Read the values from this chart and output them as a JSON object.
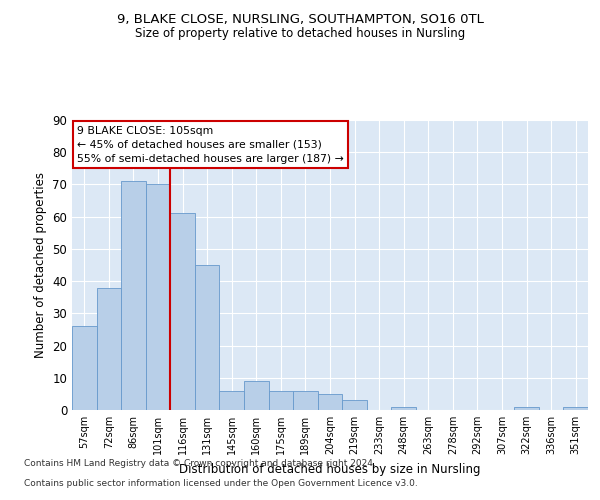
{
  "title1": "9, BLAKE CLOSE, NURSLING, SOUTHAMPTON, SO16 0TL",
  "title2": "Size of property relative to detached houses in Nursling",
  "xlabel": "Distribution of detached houses by size in Nursling",
  "ylabel": "Number of detached properties",
  "categories": [
    "57sqm",
    "72sqm",
    "86sqm",
    "101sqm",
    "116sqm",
    "131sqm",
    "145sqm",
    "160sqm",
    "175sqm",
    "189sqm",
    "204sqm",
    "219sqm",
    "233sqm",
    "248sqm",
    "263sqm",
    "278sqm",
    "292sqm",
    "307sqm",
    "322sqm",
    "336sqm",
    "351sqm"
  ],
  "values": [
    26,
    38,
    71,
    70,
    61,
    45,
    6,
    9,
    6,
    6,
    5,
    3,
    0,
    1,
    0,
    0,
    0,
    0,
    1,
    0,
    1
  ],
  "bar_color": "#b8cfe8",
  "bar_edge_color": "#6699cc",
  "vline_x": 3.5,
  "vline_color": "#cc0000",
  "annotation_text": "9 BLAKE CLOSE: 105sqm\n← 45% of detached houses are smaller (153)\n55% of semi-detached houses are larger (187) →",
  "annotation_box_color": "#ffffff",
  "annotation_box_edge": "#cc0000",
  "ylim": [
    0,
    90
  ],
  "yticks": [
    0,
    10,
    20,
    30,
    40,
    50,
    60,
    70,
    80,
    90
  ],
  "background_color": "#dce8f5",
  "footer1": "Contains HM Land Registry data © Crown copyright and database right 2024.",
  "footer2": "Contains public sector information licensed under the Open Government Licence v3.0."
}
